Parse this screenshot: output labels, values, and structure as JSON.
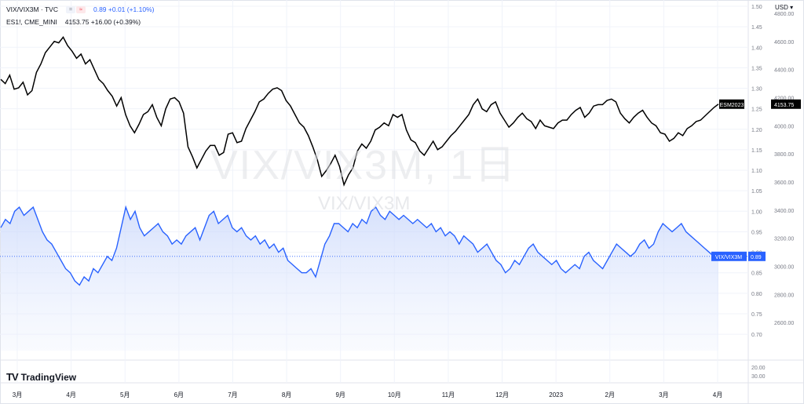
{
  "legend": {
    "row1": {
      "symbol": "VIX/VIX3M · TVC",
      "values": "0.89  +0.01  (+1.10%)"
    },
    "row2": {
      "symbol": "ES1!, CME_MINI",
      "values": "4153.75  +16.00  (+0.39%)"
    },
    "pill_equal": "=",
    "pill_approx": "≈"
  },
  "watermark": {
    "line1": "VIX/VIX3M, 1日",
    "line2": "VIX/VIX3M"
  },
  "currency": "USD ▾",
  "logo_text": "TradingView",
  "colors": {
    "ratio_line": "#2962ff",
    "ratio_fill": "#e8eefc",
    "es_line": "#000000",
    "grid": "#f0f3fa",
    "text": "#131722",
    "axis_text": "#787b86"
  },
  "chart_data": {
    "type": "line",
    "x_labels": [
      "3月",
      "4月",
      "5月",
      "6月",
      "7月",
      "8月",
      "9月",
      "10月",
      "11月",
      "12月",
      "2023",
      "2月",
      "3月",
      "4月"
    ],
    "ratio_axis": {
      "ticks": [
        "1.50",
        "1.45",
        "1.40",
        "1.35",
        "1.30",
        "1.25",
        "1.20",
        "1.15",
        "1.10",
        "1.05",
        "1.00",
        "0.95",
        "0.90",
        "0.85",
        "0.80",
        "0.75",
        "0.70"
      ],
      "range": [
        0.66,
        1.5
      ]
    },
    "price_axis": {
      "ticks": [
        "4800.00",
        "4600.00",
        "4400.00",
        "4200.00",
        "4000.00",
        "3800.00",
        "3600.00",
        "3400.00",
        "3200.00",
        "3000.00",
        "2800.00",
        "2600.00"
      ],
      "range": [
        2400,
        4850
      ]
    },
    "volume_ticks": [
      "20.00",
      "30.00"
    ],
    "series": [
      {
        "name": "ESM2023",
        "last": "4153.75",
        "values": [
          4330,
          4300,
          4360,
          4260,
          4270,
          4310,
          4220,
          4250,
          4380,
          4440,
          4520,
          4560,
          4600,
          4590,
          4630,
          4570,
          4530,
          4480,
          4510,
          4440,
          4470,
          4400,
          4330,
          4300,
          4250,
          4210,
          4140,
          4200,
          4080,
          4000,
          3950,
          4010,
          4080,
          4100,
          4150,
          4060,
          4000,
          4120,
          4190,
          4200,
          4170,
          4090,
          3850,
          3780,
          3700,
          3760,
          3820,
          3860,
          3860,
          3790,
          3810,
          3940,
          3950,
          3880,
          3890,
          3980,
          4040,
          4100,
          4170,
          4190,
          4230,
          4260,
          4270,
          4250,
          4180,
          4140,
          4080,
          4020,
          3990,
          3930,
          3850,
          3760,
          3640,
          3680,
          3730,
          3790,
          3710,
          3580,
          3650,
          3700,
          3820,
          3870,
          3840,
          3890,
          3970,
          3990,
          4020,
          4000,
          4080,
          4060,
          4080,
          3970,
          3900,
          3880,
          3820,
          3790,
          3840,
          3890,
          3830,
          3850,
          3890,
          3930,
          3960,
          4000,
          4040,
          4080,
          4150,
          4190,
          4120,
          4100,
          4150,
          4170,
          4090,
          4040,
          3990,
          4020,
          4060,
          4090,
          4050,
          4030,
          3980,
          4040,
          4000,
          3990,
          3980,
          4020,
          4040,
          4040,
          4080,
          4110,
          4130,
          4060,
          4090,
          4140,
          4150,
          4150,
          4180,
          4190,
          4170,
          4090,
          4050,
          4020,
          4060,
          4090,
          4110,
          4060,
          4020,
          4000,
          3950,
          3940,
          3890,
          3910,
          3950,
          3930,
          3980,
          4000,
          4030,
          4040,
          4070,
          4100,
          4130,
          4153.75
        ]
      },
      {
        "name": "VIX/VIX3M",
        "last": "0.89",
        "values": [
          0.96,
          0.98,
          0.97,
          1.0,
          1.01,
          0.99,
          1.0,
          1.01,
          0.98,
          0.95,
          0.93,
          0.92,
          0.9,
          0.88,
          0.86,
          0.85,
          0.83,
          0.82,
          0.84,
          0.83,
          0.86,
          0.85,
          0.87,
          0.89,
          0.88,
          0.91,
          0.96,
          1.01,
          0.98,
          1.0,
          0.96,
          0.94,
          0.95,
          0.96,
          0.97,
          0.95,
          0.94,
          0.92,
          0.93,
          0.92,
          0.94,
          0.95,
          0.96,
          0.93,
          0.96,
          0.99,
          1.0,
          0.97,
          0.98,
          0.99,
          0.96,
          0.95,
          0.96,
          0.94,
          0.93,
          0.94,
          0.92,
          0.93,
          0.91,
          0.92,
          0.9,
          0.91,
          0.88,
          0.87,
          0.86,
          0.85,
          0.85,
          0.86,
          0.84,
          0.88,
          0.92,
          0.94,
          0.97,
          0.97,
          0.96,
          0.95,
          0.97,
          0.96,
          0.98,
          0.97,
          1.0,
          1.01,
          0.99,
          0.98,
          1.0,
          0.99,
          0.98,
          0.99,
          0.98,
          0.97,
          0.98,
          0.97,
          0.96,
          0.97,
          0.95,
          0.96,
          0.94,
          0.95,
          0.94,
          0.92,
          0.94,
          0.93,
          0.92,
          0.9,
          0.91,
          0.92,
          0.9,
          0.88,
          0.87,
          0.85,
          0.86,
          0.88,
          0.87,
          0.89,
          0.91,
          0.92,
          0.9,
          0.89,
          0.88,
          0.87,
          0.88,
          0.86,
          0.85,
          0.86,
          0.87,
          0.86,
          0.89,
          0.9,
          0.88,
          0.87,
          0.86,
          0.88,
          0.9,
          0.92,
          0.91,
          0.9,
          0.89,
          0.9,
          0.92,
          0.93,
          0.91,
          0.92,
          0.95,
          0.97,
          0.96,
          0.95,
          0.96,
          0.97,
          0.95,
          0.94,
          0.93,
          0.92,
          0.91,
          0.9,
          0.89,
          0.89
        ]
      }
    ]
  }
}
